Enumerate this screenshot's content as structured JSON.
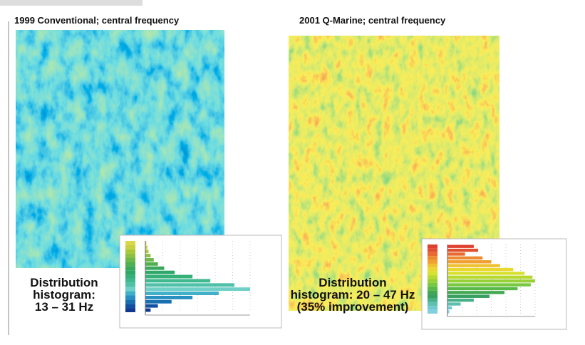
{
  "panels": [
    {
      "title": "1999 Conventional; central frequency",
      "caption": [
        "Distribution",
        "histogram:",
        "13 – 31 Hz"
      ],
      "histogram": {
        "values": [
          1,
          2,
          3,
          5,
          8,
          12,
          18,
          28,
          45,
          62,
          85,
          100,
          70,
          45,
          25,
          12,
          5
        ],
        "colors": [
          "#d8d84a",
          "#c8d040",
          "#a8c838",
          "#8cc040",
          "#6cb848",
          "#50b050",
          "#3aa85a",
          "#2ea868",
          "#34b078",
          "#40b890",
          "#50c0a8",
          "#70d0c8",
          "#40b0c8",
          "#2890c0",
          "#1870b0",
          "#1050a0",
          "#103890"
        ]
      }
    },
    {
      "title": "2001 Q-Marine; central frequency",
      "caption": [
        "Distribution",
        "histogram: 20 – 47 Hz",
        "(35% improvement)"
      ],
      "histogram": {
        "values": [
          30,
          35,
          20,
          40,
          50,
          60,
          75,
          88,
          97,
          100,
          95,
          80,
          65,
          48,
          30,
          15,
          5,
          2
        ],
        "colors": [
          "#e04030",
          "#e05030",
          "#e86a30",
          "#ec8a30",
          "#f0a030",
          "#f0c030",
          "#e8d830",
          "#d8e030",
          "#b8d830",
          "#98d038",
          "#78c840",
          "#58b848",
          "#40a850",
          "#38a060",
          "#48b088",
          "#60c0b0",
          "#70c8d0",
          "#80d0e0"
        ]
      }
    }
  ]
}
